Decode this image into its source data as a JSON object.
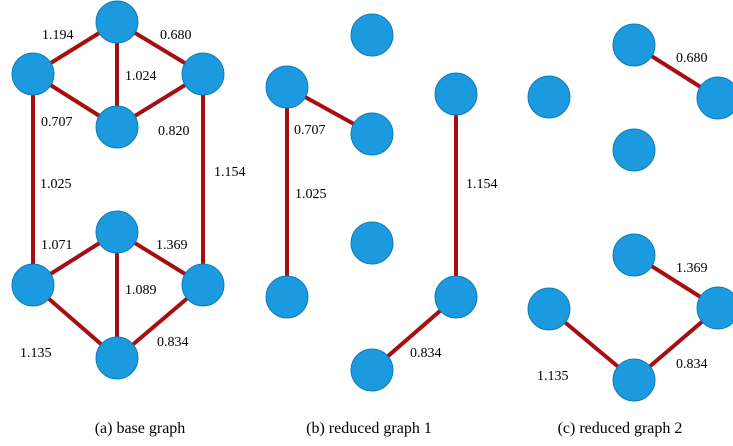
{
  "colors": {
    "edge": "#a50f0f",
    "node": "#1c9ae0"
  },
  "panels": [
    {
      "caption": "(a) base graph",
      "edge_labels": [
        "1.194",
        "0.680",
        "1.024",
        "0.707",
        "0.820",
        "1.025",
        "1.154",
        "1.071",
        "1.369",
        "1.089",
        "1.135",
        "0.834"
      ]
    },
    {
      "caption": "(b) reduced graph 1",
      "edge_labels": [
        "0.707",
        "1.025",
        "1.154",
        "0.834"
      ]
    },
    {
      "caption": "(c) reduced graph 2",
      "edge_labels": [
        "0.680",
        "1.369",
        "1.135",
        "0.834"
      ]
    }
  ]
}
